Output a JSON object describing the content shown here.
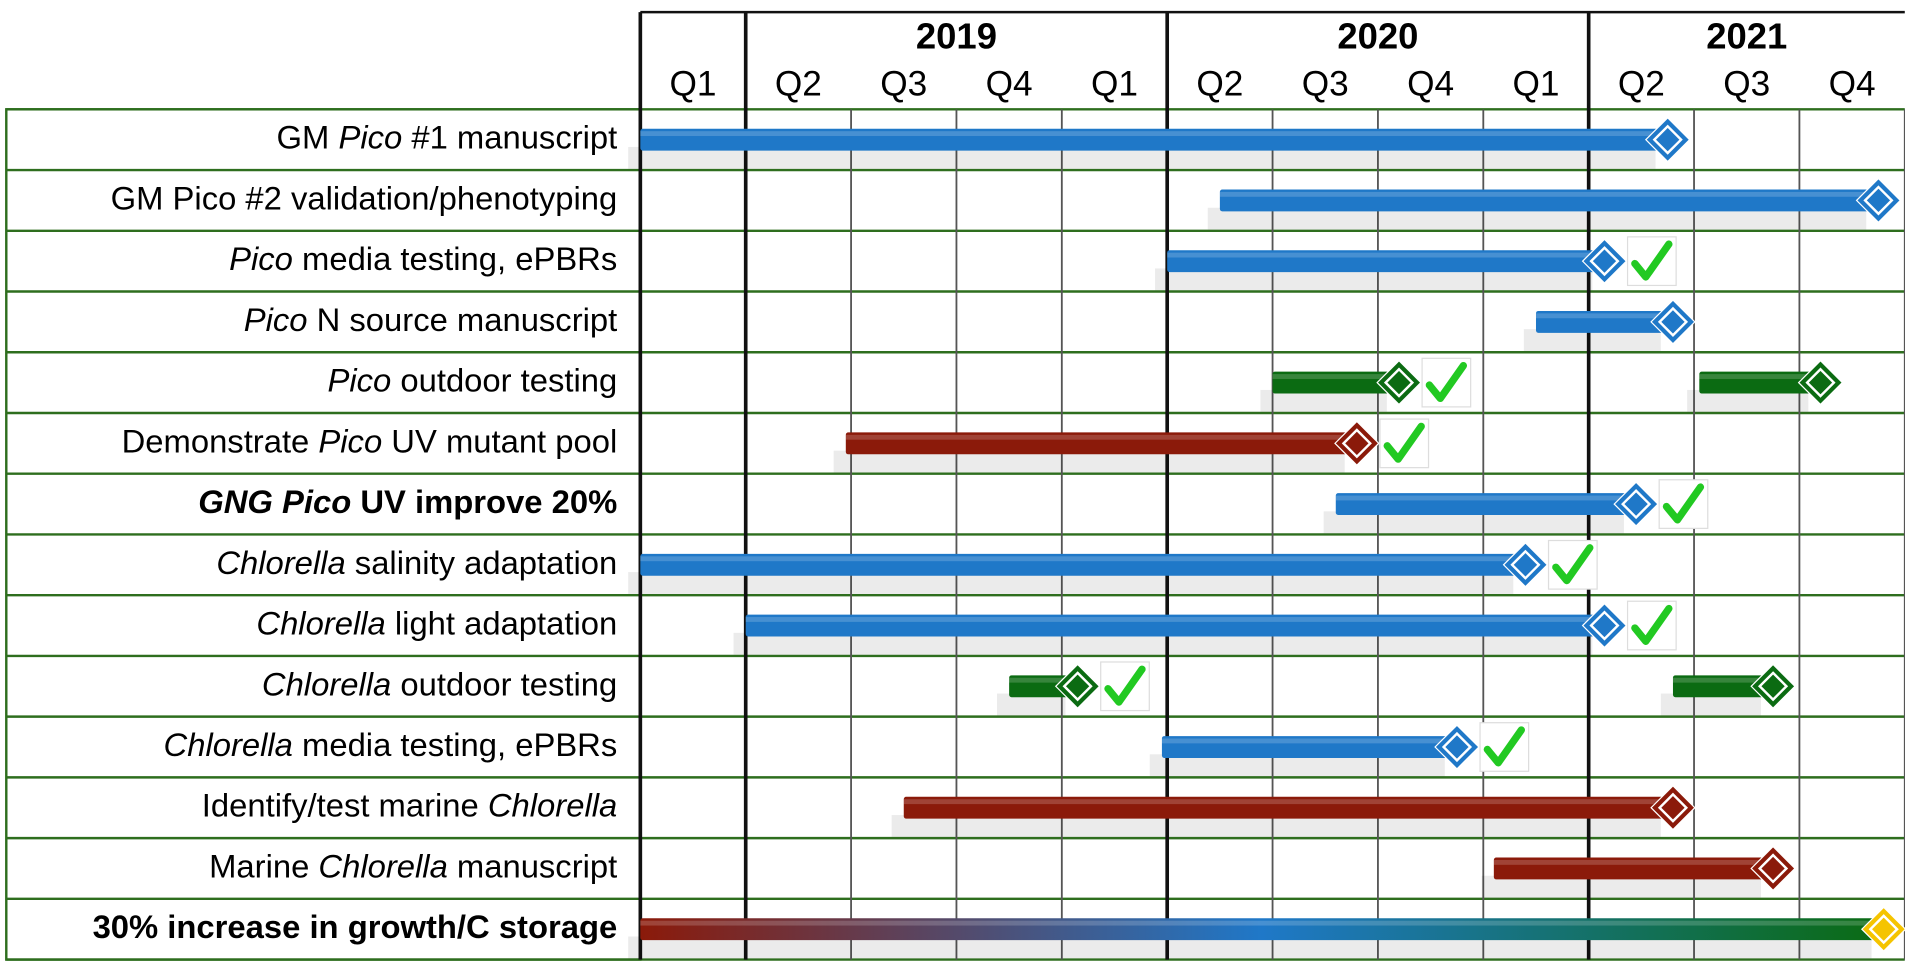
{
  "chart_data": {
    "type": "gantt",
    "xlim": [
      0,
      12
    ],
    "xticks": [
      0,
      1,
      2,
      3,
      4,
      5,
      6,
      7,
      8,
      9,
      10,
      11,
      12
    ],
    "quarters": [
      "Q1",
      "Q2",
      "Q3",
      "Q4",
      "Q1",
      "Q2",
      "Q3",
      "Q4",
      "Q1",
      "Q2",
      "Q3",
      "Q4"
    ],
    "years": [
      {
        "label": "2019",
        "start": 1,
        "end": 5
      },
      {
        "label": "2020",
        "start": 5,
        "end": 9
      },
      {
        "label": "2021",
        "start": 9,
        "end": 12
      }
    ],
    "grid": true,
    "tasks": [
      {
        "label": [
          "GM ",
          "Pico",
          " #1 manuscript"
        ],
        "italic_parts": [
          1
        ],
        "segments": [
          {
            "start": 0,
            "end": 9.75,
            "color": "#1f78c8",
            "done": false
          }
        ]
      },
      {
        "label": [
          "GM Pico #2 validation/phenotyping"
        ],
        "italic_parts": [],
        "segments": [
          {
            "start": 5.5,
            "end": 11.75,
            "color": "#1f78c8",
            "done": false
          }
        ]
      },
      {
        "label": [
          "Pico",
          " media testing, ePBRs"
        ],
        "italic_parts": [
          0
        ],
        "segments": [
          {
            "start": 5,
            "end": 9.15,
            "color": "#1f78c8",
            "done": true
          }
        ]
      },
      {
        "label": [
          "Pico",
          " N source manuscript"
        ],
        "italic_parts": [
          0
        ],
        "segments": [
          {
            "start": 8.5,
            "end": 9.8,
            "color": "#1f78c8",
            "done": false
          }
        ]
      },
      {
        "label": [
          "Pico",
          " outdoor testing"
        ],
        "italic_parts": [
          0
        ],
        "segments": [
          {
            "start": 6,
            "end": 7.2,
            "color": "#0b6b12",
            "done": true
          },
          {
            "start": 10.05,
            "end": 11.2,
            "color": "#0b6b12",
            "done": false
          }
        ]
      },
      {
        "label": [
          "Demonstrate ",
          "Pico",
          " UV mutant pool"
        ],
        "italic_parts": [
          1
        ],
        "segments": [
          {
            "start": 1.95,
            "end": 6.8,
            "color": "#8b1a0a",
            "done": true
          }
        ]
      },
      {
        "label": [
          "GNG Pico",
          " UV improve 20%"
        ],
        "italic_parts": [
          0
        ],
        "bold": true,
        "segments": [
          {
            "start": 6.6,
            "end": 9.45,
            "color": "#1f78c8",
            "done": true
          }
        ]
      },
      {
        "label": [
          "Chlorella",
          " salinity adaptation"
        ],
        "italic_parts": [
          0
        ],
        "segments": [
          {
            "start": 0,
            "end": 8.4,
            "color": "#1f78c8",
            "done": true
          }
        ]
      },
      {
        "label": [
          "Chlorella",
          " light adaptation"
        ],
        "italic_parts": [
          0
        ],
        "segments": [
          {
            "start": 1,
            "end": 9.15,
            "color": "#1f78c8",
            "done": true
          }
        ]
      },
      {
        "label": [
          "Chlorella",
          " outdoor testing"
        ],
        "italic_parts": [
          0
        ],
        "segments": [
          {
            "start": 3.5,
            "end": 4.15,
            "color": "#0b6b12",
            "done": true
          },
          {
            "start": 9.8,
            "end": 10.75,
            "color": "#0b6b12",
            "done": false
          }
        ]
      },
      {
        "label": [
          "Chlorella",
          " media testing, ePBRs"
        ],
        "italic_parts": [
          0
        ],
        "segments": [
          {
            "start": 4.95,
            "end": 7.75,
            "color": "#1f78c8",
            "done": true
          }
        ]
      },
      {
        "label": [
          "Identify/test  marine ",
          "Chlorella"
        ],
        "italic_parts": [
          1
        ],
        "segments": [
          {
            "start": 2.5,
            "end": 9.8,
            "color": "#8b1a0a",
            "done": false
          }
        ]
      },
      {
        "label": [
          "Marine ",
          "Chlorella",
          " manuscript"
        ],
        "italic_parts": [
          1
        ],
        "segments": [
          {
            "start": 8.1,
            "end": 10.75,
            "color": "#8b1a0a",
            "done": false
          }
        ]
      },
      {
        "label": [
          "30% increase in growth/C storage"
        ],
        "italic_parts": [],
        "bold": true,
        "segments": [
          {
            "start": 0,
            "end": 11.8,
            "colors": [
              "#8b1a0a",
              "#1f78c8",
              "#0b6b12"
            ],
            "milestone_color": "#f5c400",
            "done": false
          }
        ]
      }
    ]
  }
}
